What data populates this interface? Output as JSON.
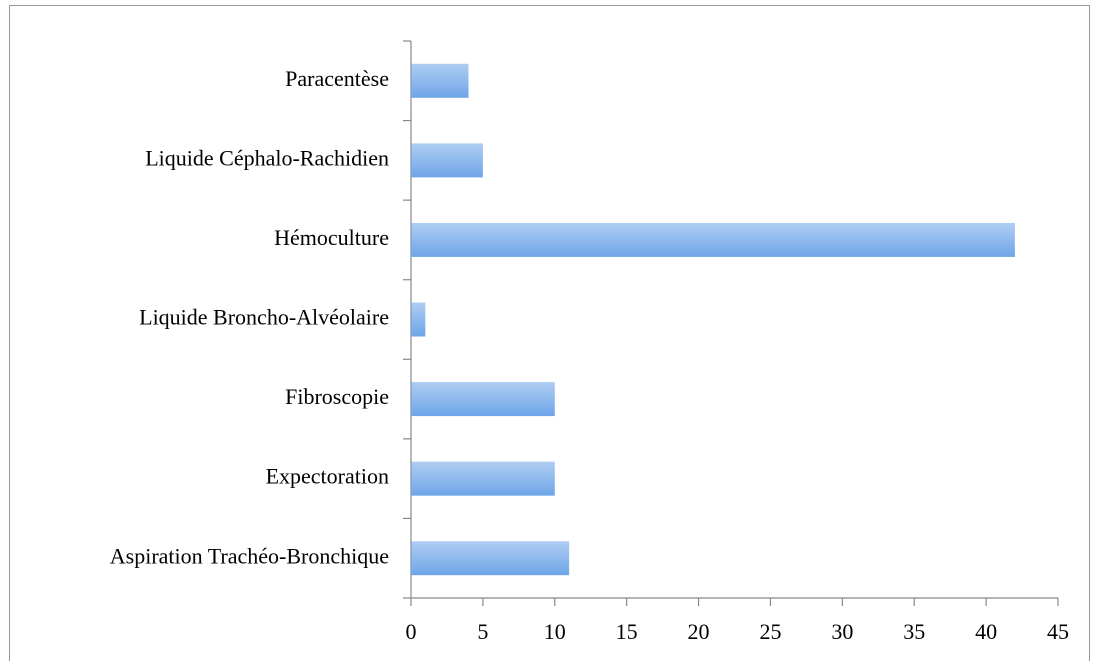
{
  "chart_data": {
    "type": "bar",
    "orientation": "horizontal",
    "categories": [
      "Paracentèse",
      "Liquide Céphalo-Rachidien",
      "Hémoculture",
      "Liquide Broncho-Alvéolaire",
      "Fibroscopie",
      "Expectoration",
      "Aspiration Trachéo-Bronchique"
    ],
    "values": [
      4,
      5,
      42,
      1,
      10,
      10,
      11
    ],
    "color": "#6ea5e8",
    "xlim": [
      0,
      45
    ],
    "xticks": [
      0,
      5,
      10,
      15,
      20,
      25,
      30,
      35,
      40,
      45
    ],
    "grid": false
  }
}
